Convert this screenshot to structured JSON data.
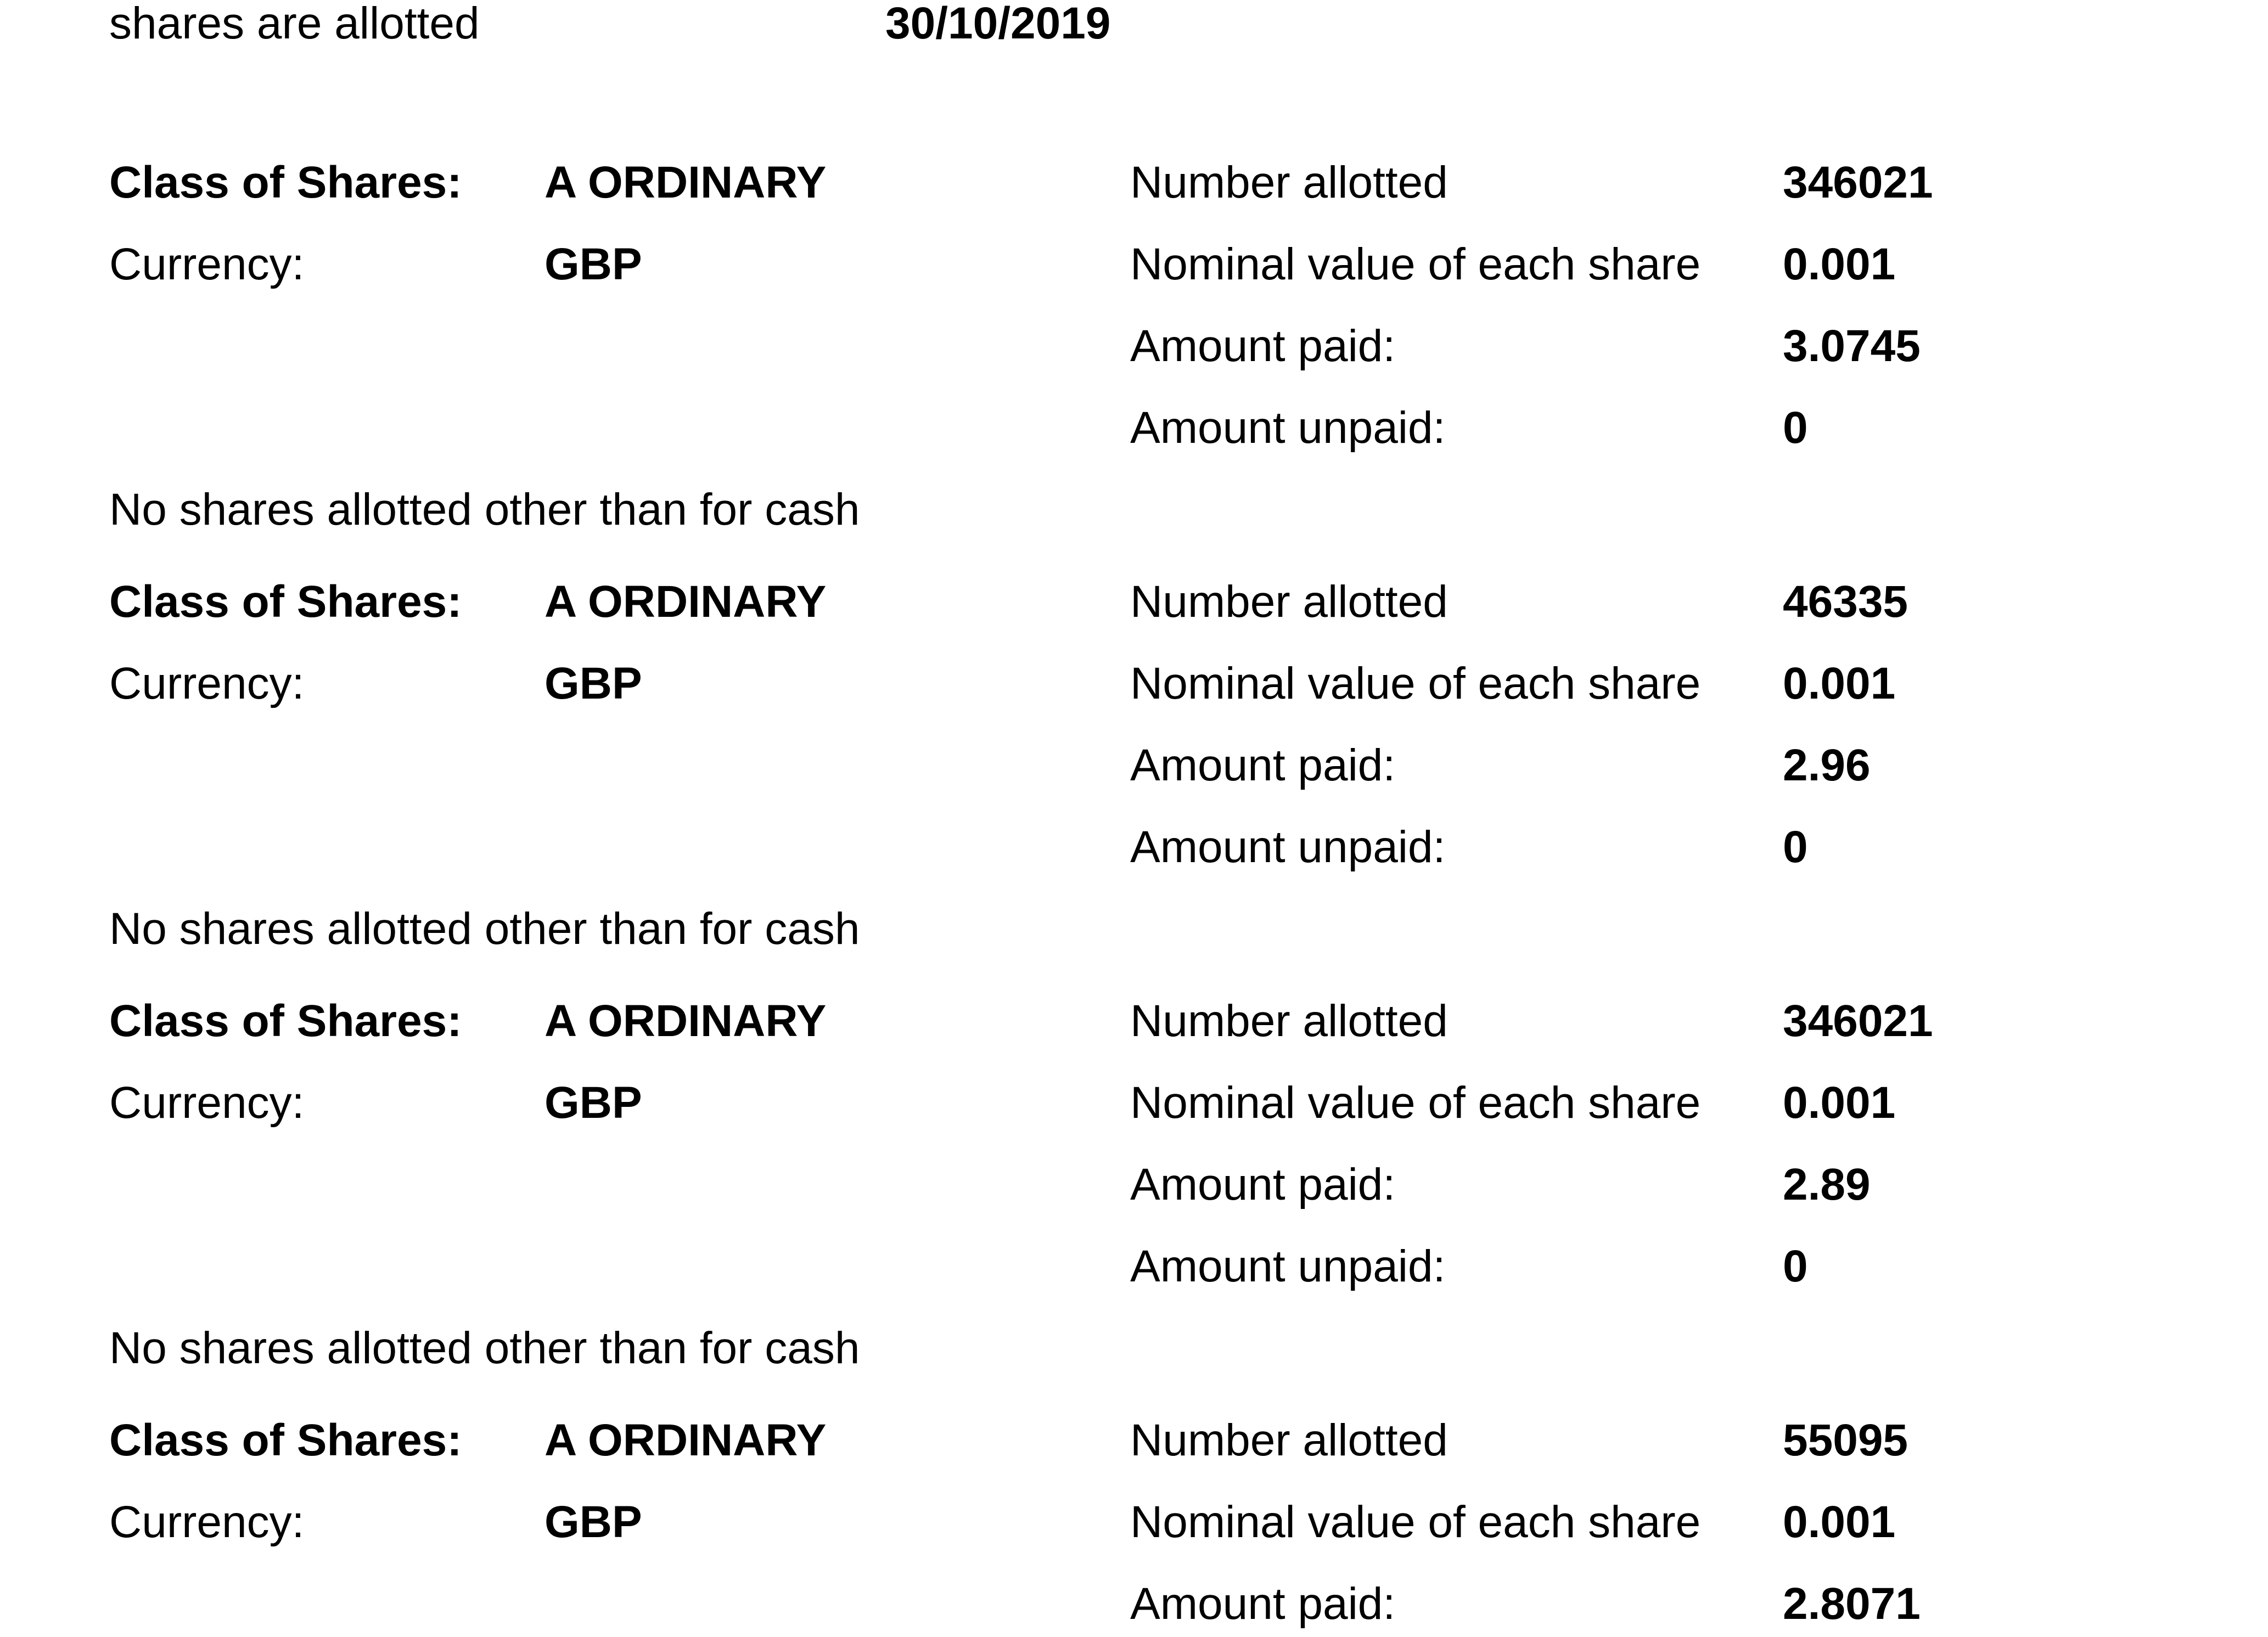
{
  "header": {
    "label": "shares are allotted",
    "date": "30/10/2019"
  },
  "labels": {
    "class_of_shares": "Class of Shares:",
    "currency": "Currency:",
    "number_allotted": "Number allotted",
    "nominal_value": "Nominal value of each share",
    "amount_paid": "Amount paid:",
    "amount_unpaid": "Amount unpaid:",
    "no_cash_note": "No shares allotted other than for cash"
  },
  "allotments": [
    {
      "class": "A ORDINARY",
      "currency": "GBP",
      "number_allotted": "346021",
      "nominal_value": "0.001",
      "amount_paid": "3.0745",
      "amount_unpaid": "0"
    },
    {
      "class": "A ORDINARY",
      "currency": "GBP",
      "number_allotted": "46335",
      "nominal_value": "0.001",
      "amount_paid": "2.96",
      "amount_unpaid": "0"
    },
    {
      "class": "A ORDINARY",
      "currency": "GBP",
      "number_allotted": "346021",
      "nominal_value": "0.001",
      "amount_paid": "2.89",
      "amount_unpaid": "0"
    },
    {
      "class": "A ORDINARY",
      "currency": "GBP",
      "number_allotted": "55095",
      "nominal_value": "0.001",
      "amount_paid": "2.8071"
    }
  ]
}
